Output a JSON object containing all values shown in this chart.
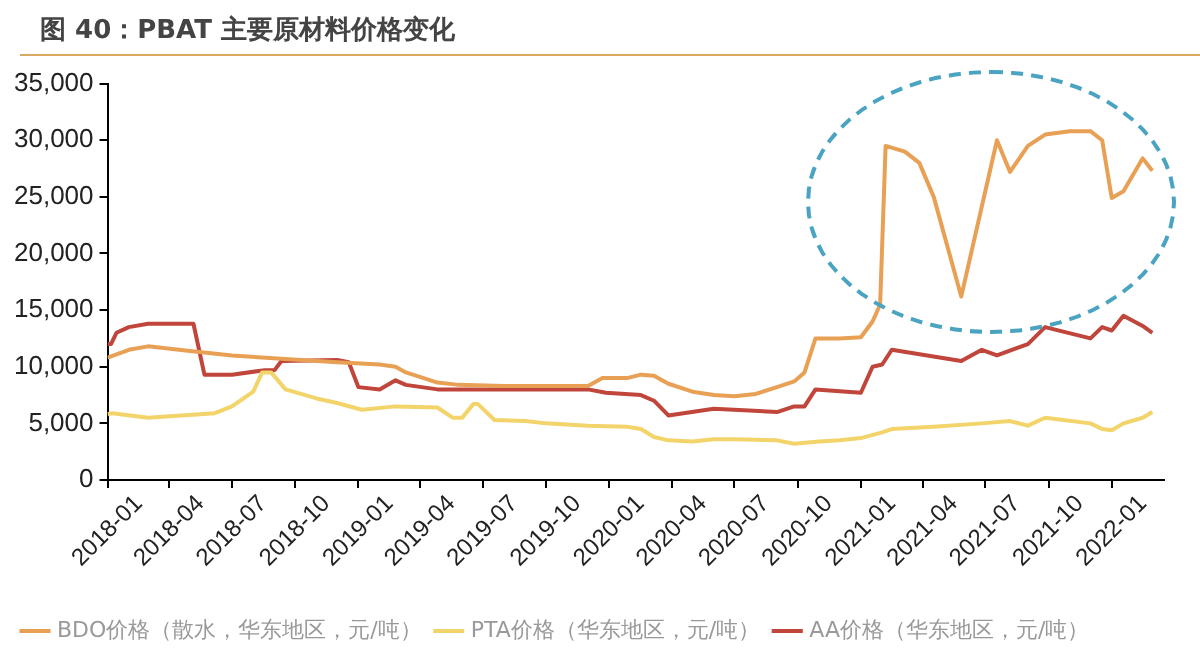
{
  "chart_data": {
    "type": "line",
    "title": "图 40：PBAT 主要原材料价格变化",
    "series": [
      {
        "name": "BDO价格（散水，华东地区，元/吨）",
        "color": "#e8a055",
        "x": [
          "2018-01-15",
          "2018-02-15",
          "2018-03-15",
          "2018-05-15",
          "2018-07-15",
          "2018-09-25",
          "2018-12-15",
          "2019-02-15",
          "2019-03-10",
          "2019-03-25",
          "2019-04-20",
          "2019-05-10",
          "2019-06-10",
          "2019-08-15",
          "2019-12-15",
          "2020-01-05",
          "2020-02-10",
          "2020-03-01",
          "2020-03-20",
          "2020-04-10",
          "2020-05-15",
          "2020-06-15",
          "2020-07-15",
          "2020-08-15",
          "2020-09-15",
          "2020-10-10",
          "2020-10-25",
          "2020-11-10",
          "2020-12-15",
          "2021-01-15",
          "2021-02-01",
          "2021-02-12",
          "2021-02-20",
          "2021-03-20",
          "2021-04-10",
          "2021-05-01",
          "2021-06-10",
          "2021-08-01",
          "2021-08-20",
          "2021-09-15",
          "2021-10-10",
          "2021-11-15",
          "2021-12-15",
          "2022-01-01",
          "2022-01-15",
          "2022-02-01",
          "2022-03-01",
          "2022-03-15"
        ],
        "values": [
          10800,
          11500,
          11800,
          11400,
          11000,
          10700,
          10400,
          10200,
          10000,
          9500,
          9000,
          8600,
          8400,
          8300,
          8300,
          9000,
          9000,
          9300,
          9200,
          8500,
          7800,
          7500,
          7400,
          7600,
          8200,
          8700,
          9500,
          12500,
          12500,
          12600,
          14000,
          15500,
          29500,
          29000,
          28000,
          25000,
          16200,
          30000,
          27200,
          29500,
          30500,
          30800,
          30800,
          30000,
          24900,
          25500,
          28400,
          27300
        ]
      },
      {
        "name": "PTA价格（华东地区，元/吨）",
        "color": "#f2d46a",
        "x": [
          "2018-01-15",
          "2018-01-22",
          "2018-03-15",
          "2018-06-20",
          "2018-07-15",
          "2018-08-15",
          "2018-08-28",
          "2018-09-10",
          "2018-10-01",
          "2018-11-15",
          "2018-12-15",
          "2019-01-20",
          "2019-03-10",
          "2019-05-10",
          "2019-06-01",
          "2019-06-15",
          "2019-07-01",
          "2019-07-08",
          "2019-08-01",
          "2019-09-15",
          "2019-10-15",
          "2019-12-15",
          "2020-02-10",
          "2020-03-01",
          "2020-03-20",
          "2020-04-10",
          "2020-05-15",
          "2020-06-15",
          "2020-07-15",
          "2020-09-15",
          "2020-10-10",
          "2020-11-15",
          "2020-12-15",
          "2021-01-15",
          "2021-02-15",
          "2021-03-01",
          "2021-05-01",
          "2021-07-10",
          "2021-08-20",
          "2021-09-15",
          "2021-10-10",
          "2021-12-15",
          "2022-01-01",
          "2022-01-15",
          "2022-02-01",
          "2022-03-01",
          "2022-03-15"
        ],
        "values": [
          5800,
          5900,
          5500,
          5900,
          6500,
          7800,
          9500,
          9500,
          8000,
          7200,
          6800,
          6200,
          6500,
          6400,
          5500,
          5500,
          6700,
          6700,
          5300,
          5200,
          5000,
          4800,
          4700,
          4500,
          3800,
          3500,
          3400,
          3600,
          3600,
          3500,
          3200,
          3400,
          3500,
          3700,
          4200,
          4500,
          4700,
          5000,
          5200,
          4800,
          5500,
          5000,
          4500,
          4400,
          5000,
          5500,
          6000
        ]
      },
      {
        "name": "AA价格（华东地区，元/吨）",
        "color": "#c0453a",
        "x": [
          "2018-01-15",
          "2018-01-20",
          "2018-01-28",
          "2018-02-15",
          "2018-03-15",
          "2018-05-20",
          "2018-06-05",
          "2018-07-15",
          "2018-09-01",
          "2018-09-15",
          "2018-09-25",
          "2018-12-15",
          "2019-01-01",
          "2019-01-15",
          "2019-02-15",
          "2019-03-10",
          "2019-03-25",
          "2019-05-10",
          "2019-12-15",
          "2020-01-10",
          "2020-03-01",
          "2020-03-20",
          "2020-04-10",
          "2020-06-15",
          "2020-09-15",
          "2020-10-10",
          "2020-10-25",
          "2020-11-10",
          "2021-01-15",
          "2021-02-01",
          "2021-02-15",
          "2021-03-01",
          "2021-06-10",
          "2021-07-10",
          "2021-08-01",
          "2021-09-15",
          "2021-10-10",
          "2021-12-15",
          "2022-01-01",
          "2022-01-15",
          "2022-02-01",
          "2022-03-01",
          "2022-03-15"
        ],
        "values": [
          12000,
          12000,
          13000,
          13500,
          13800,
          13800,
          9300,
          9300,
          9700,
          9700,
          10500,
          10600,
          10400,
          8200,
          8000,
          8800,
          8400,
          8000,
          8000,
          7700,
          7500,
          7000,
          5700,
          6300,
          6000,
          6500,
          6500,
          8000,
          7700,
          10000,
          10200,
          11500,
          10500,
          11500,
          11000,
          12000,
          13500,
          12500,
          13500,
          13200,
          14500,
          13600,
          13000
        ]
      }
    ],
    "xticks": [
      {
        "value": "2018-01-15",
        "label": "2018-01"
      },
      {
        "value": "2018-04-15",
        "label": "2018-04"
      },
      {
        "value": "2018-07-15",
        "label": "2018-07"
      },
      {
        "value": "2018-10-15",
        "label": "2018-10"
      },
      {
        "value": "2019-01-15",
        "label": "2019-01"
      },
      {
        "value": "2019-04-15",
        "label": "2019-04"
      },
      {
        "value": "2019-07-15",
        "label": "2019-07"
      },
      {
        "value": "2019-10-15",
        "label": "2019-10"
      },
      {
        "value": "2020-01-15",
        "label": "2020-01"
      },
      {
        "value": "2020-04-15",
        "label": "2020-04"
      },
      {
        "value": "2020-07-15",
        "label": "2020-07"
      },
      {
        "value": "2020-10-15",
        "label": "2020-10"
      },
      {
        "value": "2021-01-15",
        "label": "2021-01"
      },
      {
        "value": "2021-04-15",
        "label": "2021-04"
      },
      {
        "value": "2021-07-15",
        "label": "2021-07"
      },
      {
        "value": "2021-10-15",
        "label": "2021-10"
      },
      {
        "value": "2022-01-15",
        "label": "2022-01"
      }
    ],
    "xlim": [
      "2018-01-15",
      "2022-04-01"
    ],
    "ylim": [
      0,
      35000
    ],
    "yticks": [
      {
        "value": 0,
        "label": "0"
      },
      {
        "value": 5000,
        "label": "5,000"
      },
      {
        "value": 10000,
        "label": "10,000"
      },
      {
        "value": 15000,
        "label": "15,000"
      },
      {
        "value": 20000,
        "label": "20,000"
      },
      {
        "value": 25000,
        "label": "25,000"
      },
      {
        "value": 30000,
        "label": "30,000"
      },
      {
        "value": 35000,
        "label": "35,000"
      }
    ],
    "grid": false,
    "legend": "bottom",
    "marker": "none",
    "line_style": "solid"
  }
}
